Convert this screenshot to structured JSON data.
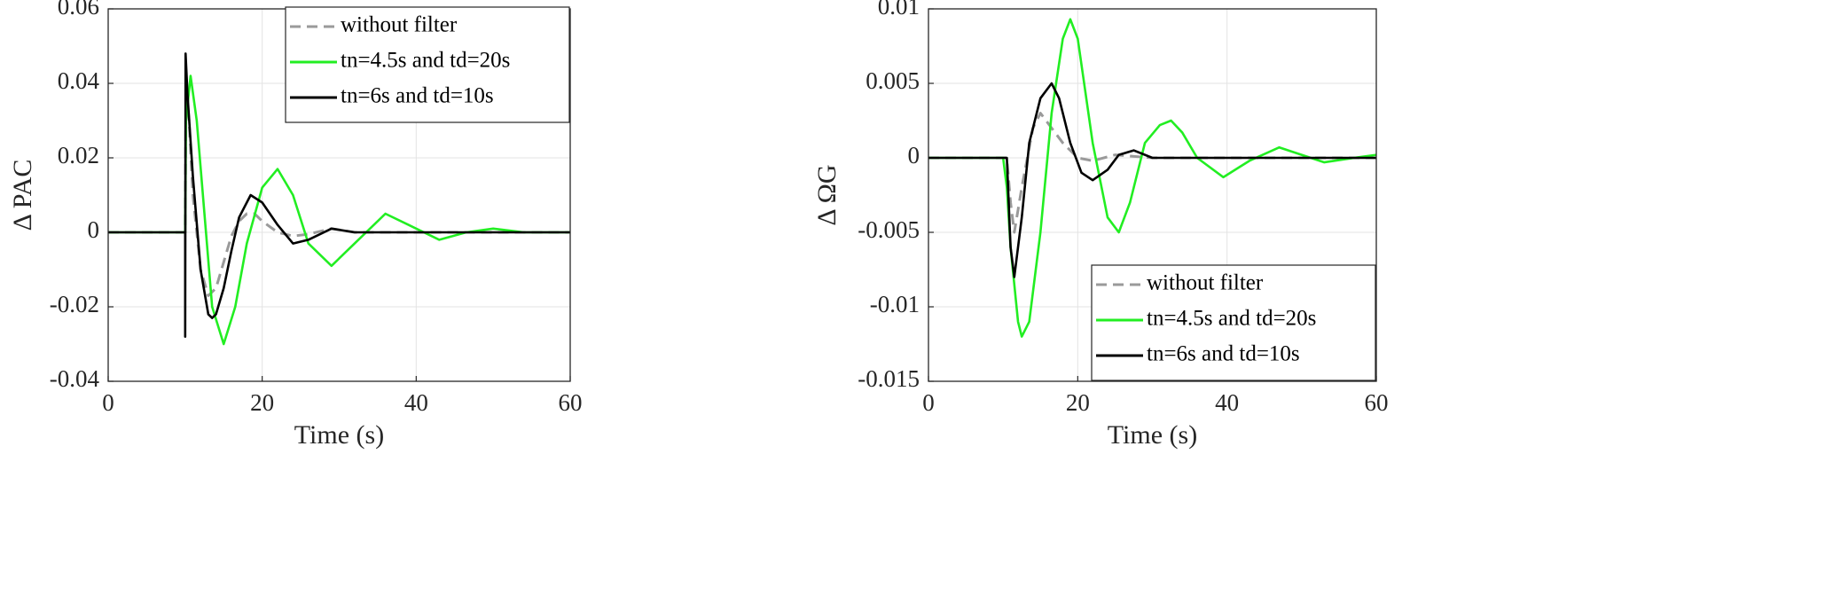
{
  "chart_data": [
    {
      "type": "line",
      "ylabel": "Δ PAC",
      "xlabel": "Time (s)",
      "xlim": [
        0,
        60
      ],
      "xticks": [
        0,
        20,
        40,
        60
      ],
      "ylim": [
        -0.04,
        0.06
      ],
      "yticks": [
        -0.04,
        -0.02,
        0,
        0.02,
        0.04,
        0.06
      ],
      "grid": true,
      "legend": "upper right",
      "series": [
        {
          "name": "without filter",
          "color": "#9a9a9a",
          "linestyle": "dashed",
          "x": [
            0,
            10,
            10.1,
            10.5,
            11,
            12,
            13,
            14,
            15,
            16,
            17,
            18,
            19,
            20,
            22,
            24,
            26,
            29,
            32,
            40,
            60
          ],
          "values": [
            0,
            0,
            0.04,
            0.03,
            0.01,
            -0.01,
            -0.017,
            -0.015,
            -0.008,
            -0.001,
            0.003,
            0.005,
            0.005,
            0.003,
            0,
            -0.001,
            -0.0005,
            0.001,
            0,
            0,
            0
          ]
        },
        {
          "name": "tn=4.5s and td=20s",
          "color": "#22ee22",
          "linestyle": "solid",
          "x": [
            0,
            10,
            10.1,
            10.7,
            11.5,
            12.5,
            13.5,
            15,
            16.5,
            18,
            20,
            22,
            24,
            26,
            29,
            32,
            36,
            39,
            43,
            46.5,
            50,
            54,
            60
          ],
          "values": [
            0,
            0,
            0.03,
            0.042,
            0.03,
            0.005,
            -0.02,
            -0.03,
            -0.02,
            -0.003,
            0.012,
            0.017,
            0.01,
            -0.003,
            -0.009,
            -0.003,
            0.005,
            0.002,
            -0.002,
            0,
            0.001,
            0,
            0
          ]
        },
        {
          "name": "tn=6s and td=10s",
          "color": "#000000",
          "linestyle": "solid",
          "x": [
            0,
            10,
            10,
            10.05,
            10.3,
            11,
            12,
            13,
            13.5,
            14,
            15,
            16,
            17,
            18.5,
            20,
            22,
            24,
            26,
            29,
            32,
            40,
            60
          ],
          "values": [
            0,
            0,
            -0.028,
            0.048,
            0.037,
            0.015,
            -0.01,
            -0.022,
            -0.023,
            -0.022,
            -0.015,
            -0.005,
            0.004,
            0.01,
            0.008,
            0.002,
            -0.003,
            -0.002,
            0.001,
            0,
            0,
            0
          ]
        }
      ]
    },
    {
      "type": "line",
      "ylabel": "Δ ΩG",
      "xlabel": "Time (s)",
      "xlim": [
        0,
        60
      ],
      "xticks": [
        0,
        20,
        40,
        60
      ],
      "ylim": [
        -0.015,
        0.01
      ],
      "yticks": [
        -0.015,
        -0.01,
        -0.005,
        0,
        0.005,
        0.01
      ],
      "grid": true,
      "legend": "lower right",
      "series": [
        {
          "name": "without filter",
          "color": "#9a9a9a",
          "linestyle": "dashed",
          "x": [
            0,
            10.5,
            11,
            11.5,
            12.5,
            14,
            15,
            16.5,
            18,
            20,
            22,
            25,
            30,
            60
          ],
          "values": [
            0,
            0,
            -0.003,
            -0.005,
            -0.002,
            0.002,
            0.003,
            0.002,
            0.001,
            0,
            -0.0002,
            0.0002,
            0,
            0
          ]
        },
        {
          "name": "tn=4.5s and td=20s",
          "color": "#22ee22",
          "linestyle": "solid",
          "x": [
            0,
            10,
            10.5,
            11,
            12,
            12.5,
            13.5,
            15,
            16.5,
            18,
            19,
            20,
            22,
            24,
            25.5,
            27,
            29,
            31,
            32.5,
            34,
            36,
            39.5,
            43,
            47,
            50,
            53,
            57,
            60
          ],
          "values": [
            0,
            0,
            -0.002,
            -0.006,
            -0.011,
            -0.012,
            -0.011,
            -0.005,
            0.003,
            0.008,
            0.0093,
            0.008,
            0.001,
            -0.004,
            -0.005,
            -0.003,
            0.001,
            0.0022,
            0.0025,
            0.0017,
            0,
            -0.0013,
            -0.0002,
            0.0007,
            0.0002,
            -0.0003,
            0,
            0.0002
          ]
        },
        {
          "name": "tn=6s and td=10s",
          "color": "#000000",
          "linestyle": "solid",
          "x": [
            0,
            10.5,
            11,
            11.5,
            12.5,
            13.5,
            15,
            16.5,
            17.5,
            19,
            20.5,
            22,
            24,
            25.5,
            27.5,
            30,
            35,
            60
          ],
          "values": [
            0,
            0,
            -0.006,
            -0.008,
            -0.004,
            0.001,
            0.004,
            0.005,
            0.004,
            0.001,
            -0.001,
            -0.0015,
            -0.0008,
            0.0002,
            0.0005,
            0,
            0,
            0
          ]
        }
      ]
    }
  ]
}
